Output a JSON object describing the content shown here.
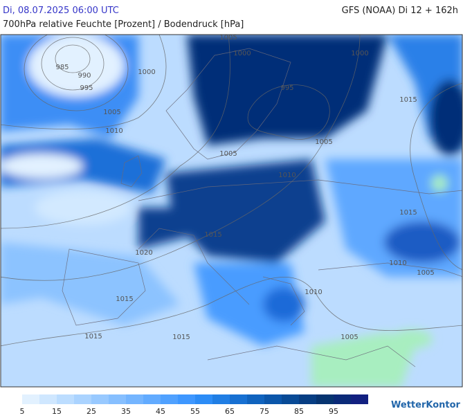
{
  "header": {
    "date": "Di, 08.07.2025 06:00 UTC",
    "model": "GFS (NOAA) Di 12 + 162h",
    "subtitle": "700hPa relative Feuchte [Prozent] / Bodendruck [hPa]"
  },
  "map": {
    "isobar_labels": [
      "1005",
      "1000",
      "985",
      "990",
      "1000",
      "995",
      "1000",
      "995",
      "1015",
      "1005",
      "1010",
      "1005",
      "1005",
      "1010",
      "1015",
      "1015",
      "1020",
      "1010",
      "1005",
      "1010",
      "1015",
      "1015",
      "1015",
      "1005"
    ]
  },
  "legend": {
    "ticks": [
      "5",
      "15",
      "25",
      "35",
      "45",
      "55",
      "65",
      "75",
      "85",
      "95"
    ],
    "colors": [
      "#e2f1ff",
      "#cfe7ff",
      "#bcddff",
      "#aad3ff",
      "#98c9ff",
      "#86bfff",
      "#74b5ff",
      "#62abff",
      "#50a1ff",
      "#3e97ff",
      "#2c8cf6",
      "#207ee4",
      "#1770d2",
      "#1063be",
      "#0b56aa",
      "#084a96",
      "#073e83",
      "#063470",
      "#0a2a78",
      "#122080"
    ]
  },
  "brand": "WetterKontor"
}
